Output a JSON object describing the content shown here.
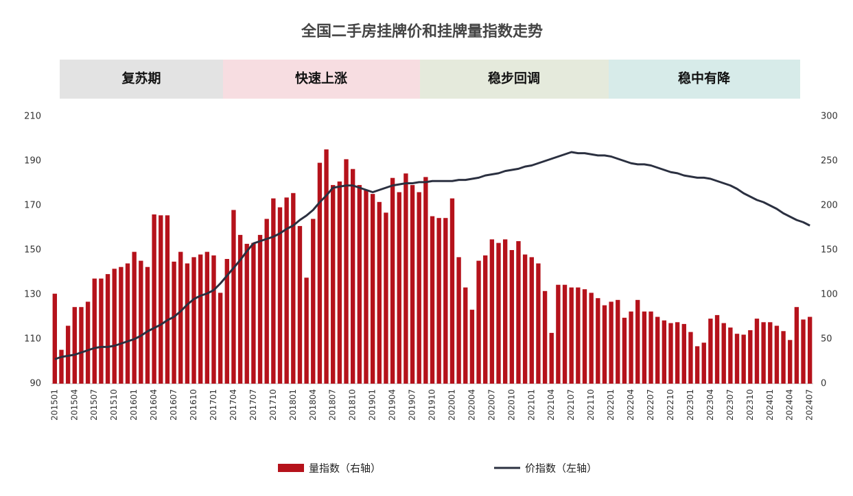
{
  "chart_data": {
    "type": "bar-line",
    "title": "全国二手房挂牌价和挂牌量指数走势",
    "phases": [
      "复苏期",
      "快速上涨",
      "稳步回调",
      "稳中有降"
    ],
    "categories": [
      "201501",
      null,
      null,
      "201504",
      null,
      null,
      "201507",
      null,
      null,
      "201510",
      null,
      null,
      "201601",
      null,
      null,
      "201604",
      null,
      null,
      "201607",
      null,
      null,
      "201610",
      null,
      null,
      "201701",
      null,
      null,
      "201704",
      null,
      null,
      "201707",
      null,
      null,
      "201710",
      null,
      null,
      "201801",
      null,
      null,
      "201804",
      null,
      null,
      "201807",
      null,
      null,
      "201810",
      null,
      null,
      "201901",
      null,
      null,
      "201904",
      null,
      null,
      "201907",
      null,
      null,
      "201910",
      null,
      null,
      "202001",
      null,
      null,
      "202004",
      null,
      null,
      "202007",
      null,
      null,
      "202010",
      null,
      null,
      "202101",
      null,
      null,
      "202104",
      null,
      null,
      "202107",
      null,
      null,
      "202110",
      null,
      null,
      "202201",
      null,
      null,
      "202204",
      null,
      null,
      "202207",
      null,
      null,
      "202210",
      null,
      null,
      "202301",
      null,
      null,
      "202304",
      null,
      null,
      "202307",
      null,
      null,
      "202310",
      null,
      null,
      "202401",
      null,
      null,
      "202404",
      null,
      null,
      "202407"
    ],
    "series": [
      {
        "name": "量指数（右轴）",
        "type": "bar",
        "axis": "y2",
        "color": "#b5121b",
        "values": [
          101,
          38,
          65,
          86,
          86,
          92,
          118,
          118,
          123,
          129,
          131,
          135,
          148,
          138,
          131,
          190,
          189,
          189,
          137,
          148,
          135,
          142,
          145,
          148,
          144,
          102,
          140,
          195,
          167,
          157,
          158,
          167,
          185,
          208,
          198,
          209,
          214,
          177,
          119,
          185,
          248,
          263,
          223,
          227,
          252,
          241,
          223,
          217,
          213,
          204,
          192,
          231,
          215,
          236,
          223,
          215,
          232,
          188,
          186,
          186,
          208,
          142,
          108,
          83,
          138,
          144,
          162,
          158,
          162,
          150,
          160,
          145,
          142,
          135,
          104,
          57,
          111,
          111,
          108,
          108,
          106,
          102,
          96,
          88,
          92,
          94,
          74,
          81,
          94,
          81,
          81,
          75,
          71,
          68,
          69,
          67,
          58,
          42,
          46,
          73,
          77,
          68,
          63,
          56,
          55,
          60,
          73,
          69,
          69,
          65,
          59,
          49,
          86,
          72,
          75
        ]
      },
      {
        "name": "价指数（左轴）",
        "type": "line",
        "axis": "y",
        "color": "#2b3040",
        "values": [
          101,
          102,
          102.5,
          103,
          104,
          105,
          106,
          106.5,
          106.5,
          107,
          108,
          109,
          110,
          111.5,
          113.5,
          115,
          116.5,
          118.5,
          120,
          122.5,
          125.5,
          128,
          129.5,
          130.5,
          132,
          135,
          138.5,
          142,
          145.5,
          149.5,
          153,
          154,
          155,
          156,
          157.5,
          159.5,
          161,
          163.5,
          165.5,
          168,
          171.5,
          174.5,
          178,
          178.5,
          179,
          179,
          178,
          177,
          176,
          177,
          178,
          179,
          179.5,
          180,
          180,
          180.5,
          180.5,
          181,
          181,
          181,
          181,
          181.5,
          181.5,
          182,
          182.5,
          183.5,
          184,
          184.5,
          185.5,
          186,
          186.5,
          187.5,
          188,
          189,
          190,
          191,
          192,
          193,
          194,
          193.5,
          193.5,
          193,
          192.5,
          192.5,
          192,
          191,
          190,
          189,
          188.5,
          188.5,
          188,
          187,
          186,
          185,
          184.5,
          183.5,
          183,
          182.5,
          182.5,
          182,
          181,
          180,
          179,
          177.5,
          175.5,
          174,
          172.5,
          171.5,
          170,
          168.5,
          166.5,
          165,
          163.5,
          162.5,
          161
        ]
      }
    ],
    "ylim": [
      90,
      210
    ],
    "yticks": [
      90,
      110,
      130,
      150,
      170,
      190,
      210
    ],
    "y2lim": [
      0,
      300
    ],
    "y2ticks": [
      0,
      50,
      100,
      150,
      200,
      250,
      300
    ]
  }
}
